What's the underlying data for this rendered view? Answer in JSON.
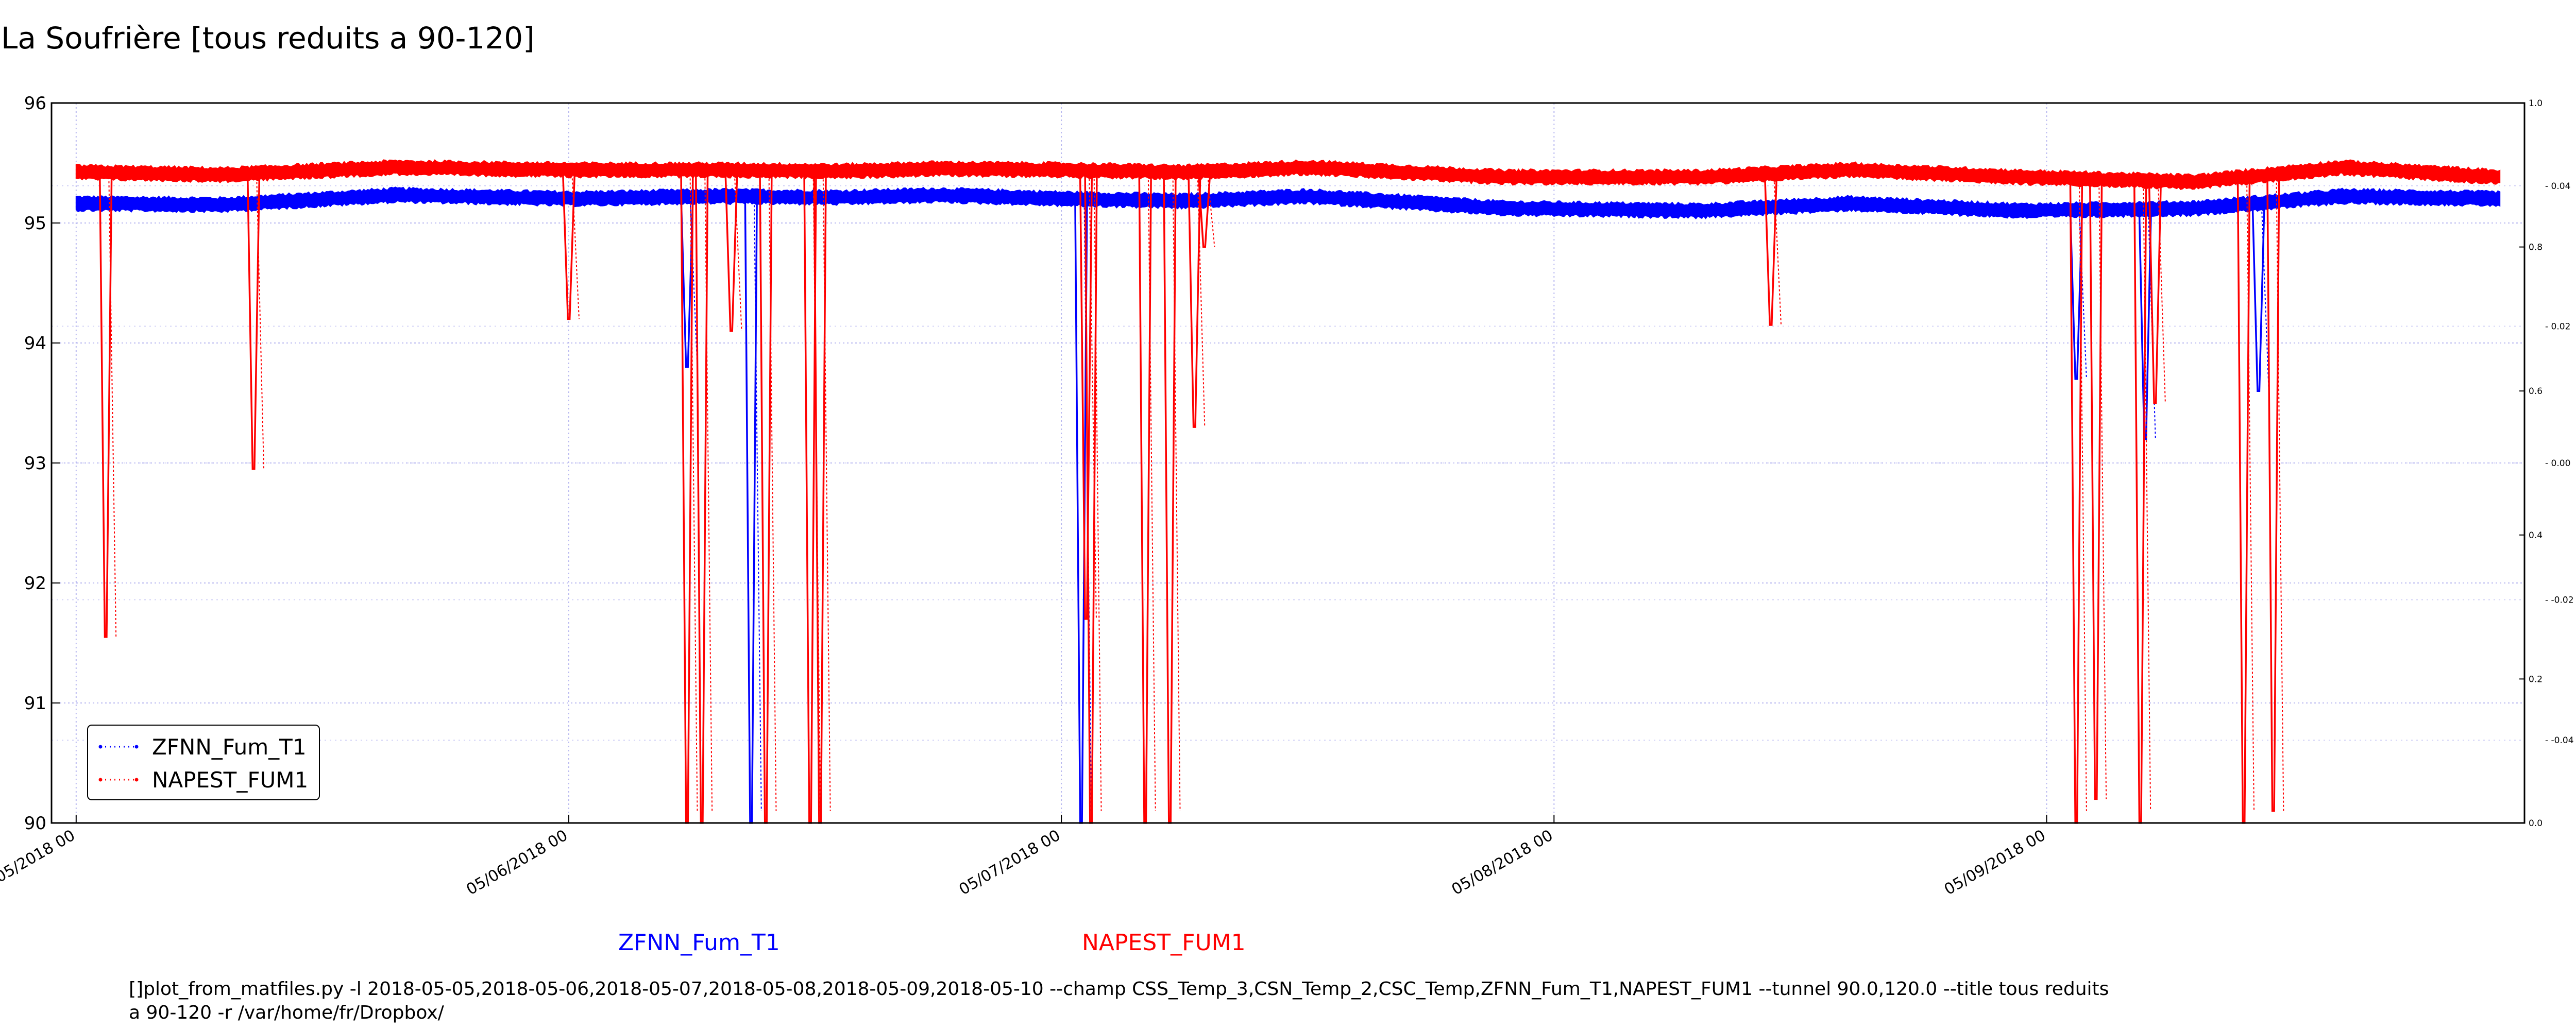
{
  "page": {
    "title": "La Soufrière [tous reduits a 90-120]",
    "command": "[]plot_from_matfiles.py -l 2018-05-05,2018-05-06,2018-05-07,2018-05-08,2018-05-09,2018-05-10 --champ CSS_Temp_3,CSN_Temp_2,CSC_Temp,ZFNN_Fum_T1,NAPEST_FUM1 --tunnel 90.0,120.0 --title tous reduits a 90-120 -r /var/home/fr/Dropbox/"
  },
  "chart_data": {
    "type": "line",
    "title": "La Soufrière [tous reduits a 90-120]",
    "xlabel": "",
    "ylabel": "",
    "x_ticks": [
      "05/05/2018 00",
      "05/06/2018 00",
      "05/07/2018 00",
      "05/08/2018 00",
      "05/09/2018 00"
    ],
    "x_tick_days": [
      0,
      1,
      2,
      3,
      4
    ],
    "xlim_days": [
      -0.05,
      4.97
    ],
    "ylim": [
      90,
      96
    ],
    "y_ticks": [
      90,
      91,
      92,
      93,
      94,
      95,
      96
    ],
    "right_axis_outer_ticks": [
      "0.0",
      "0.2",
      "0.4",
      "0.6",
      "0.8",
      "1.0"
    ],
    "right_axis_inner_ticks": [
      "-0.04",
      "-0.02",
      "0.00",
      "0.02",
      "0.04"
    ],
    "grid": true,
    "legend_position": "lower-left",
    "legend": [
      {
        "name": "ZFNN_Fum_T1",
        "color": "#0000ff"
      },
      {
        "name": "NAPEST_FUM1",
        "color": "#ff0000"
      }
    ],
    "series": [
      {
        "name": "ZFNN_Fum_T1",
        "color": "#0000ff",
        "baseline": [
          [
            0,
            95.16
          ],
          [
            0.3,
            95.15
          ],
          [
            0.65,
            95.23
          ],
          [
            1.0,
            95.2
          ],
          [
            1.3,
            95.22
          ],
          [
            1.55,
            95.21
          ],
          [
            1.75,
            95.23
          ],
          [
            2.0,
            95.2
          ],
          [
            2.25,
            95.18
          ],
          [
            2.5,
            95.22
          ],
          [
            2.9,
            95.12
          ],
          [
            3.3,
            95.1
          ],
          [
            3.6,
            95.16
          ],
          [
            3.95,
            95.1
          ],
          [
            4.3,
            95.12
          ],
          [
            4.6,
            95.22
          ],
          [
            4.92,
            95.2
          ]
        ],
        "dips": [
          [
            1.24,
            93.8
          ],
          [
            1.37,
            90.0
          ],
          [
            2.04,
            90.0
          ],
          [
            4.06,
            93.7
          ],
          [
            4.2,
            93.2
          ],
          [
            4.43,
            93.6
          ]
        ]
      },
      {
        "name": "NAPEST_FUM1",
        "color": "#ff0000",
        "baseline": [
          [
            0,
            95.42
          ],
          [
            0.3,
            95.4
          ],
          [
            0.65,
            95.46
          ],
          [
            1.0,
            95.44
          ],
          [
            1.3,
            95.44
          ],
          [
            1.55,
            95.43
          ],
          [
            1.75,
            95.45
          ],
          [
            2.0,
            95.44
          ],
          [
            2.25,
            95.42
          ],
          [
            2.5,
            95.46
          ],
          [
            2.9,
            95.38
          ],
          [
            3.3,
            95.38
          ],
          [
            3.6,
            95.44
          ],
          [
            3.95,
            95.38
          ],
          [
            4.3,
            95.34
          ],
          [
            4.6,
            95.46
          ],
          [
            4.92,
            95.38
          ]
        ],
        "dips": [
          [
            0.06,
            91.55
          ],
          [
            0.36,
            92.95
          ],
          [
            1.0,
            94.2
          ],
          [
            1.24,
            90.0
          ],
          [
            1.27,
            90.0
          ],
          [
            1.33,
            94.1
          ],
          [
            1.4,
            90.0
          ],
          [
            1.49,
            90.0
          ],
          [
            1.51,
            90.0
          ],
          [
            2.05,
            91.7
          ],
          [
            2.06,
            90.0
          ],
          [
            2.17,
            90.0
          ],
          [
            2.22,
            90.0
          ],
          [
            2.27,
            93.3
          ],
          [
            2.29,
            94.8
          ],
          [
            3.44,
            94.15
          ],
          [
            4.06,
            90.0
          ],
          [
            4.1,
            90.2
          ],
          [
            4.19,
            90.0
          ],
          [
            4.22,
            93.5
          ],
          [
            4.4,
            90.0
          ],
          [
            4.46,
            90.1
          ]
        ]
      }
    ]
  }
}
